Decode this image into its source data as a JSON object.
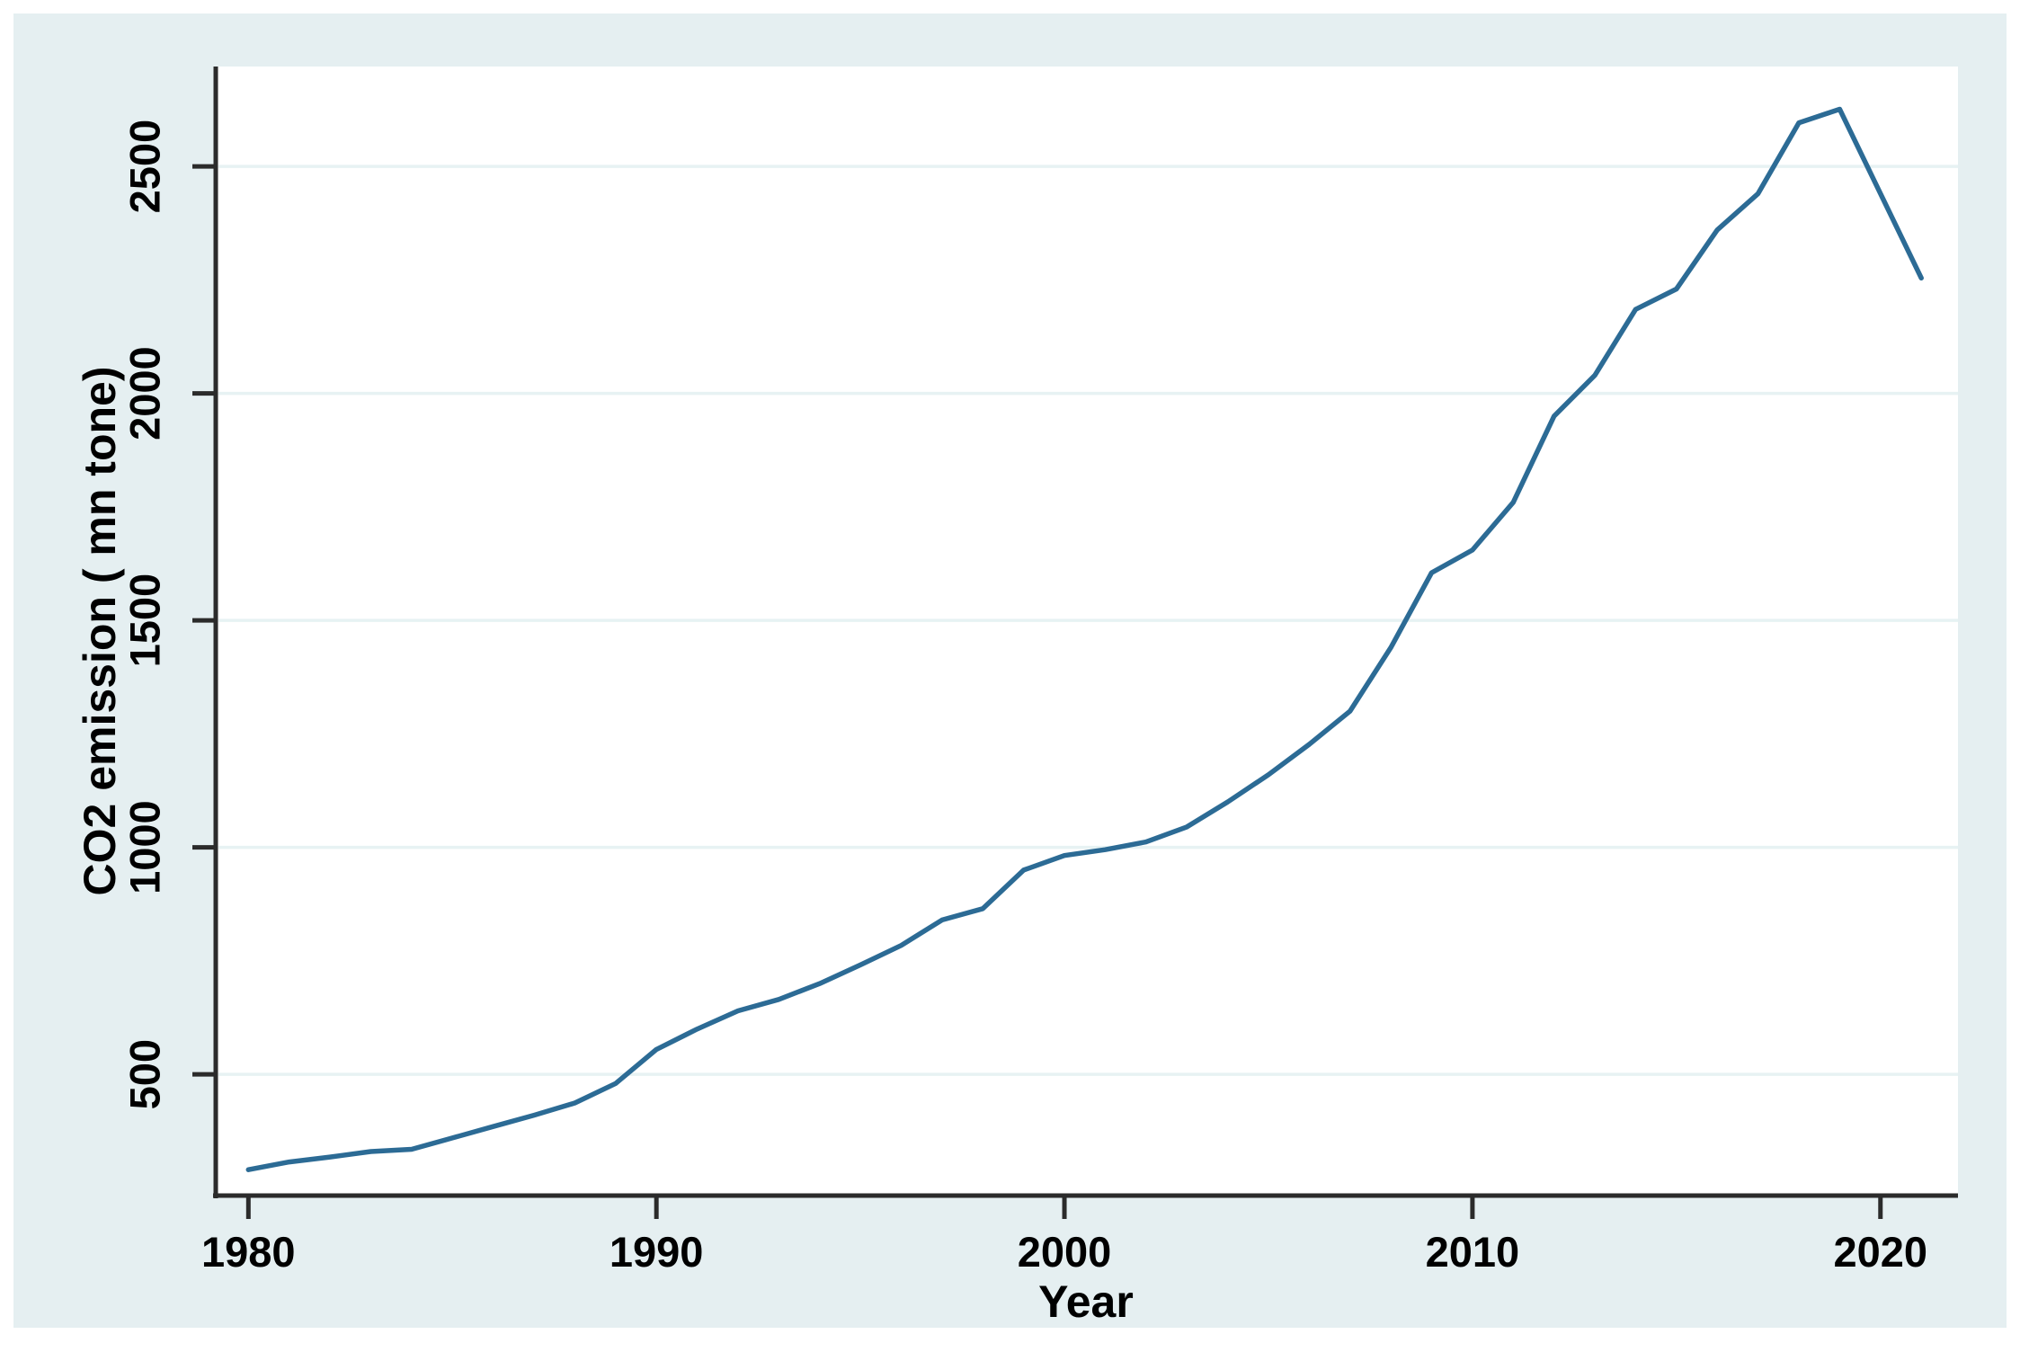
{
  "figure": {
    "outer_background": "#ffffff",
    "frame_background": "#e5eff1",
    "plot_background": "#ffffff",
    "grid_color": "#e7f2f3",
    "axis_color": "#2b2b2b",
    "text_color": "#000000"
  },
  "chart_data": {
    "type": "line",
    "title": "",
    "xlabel": "Year",
    "ylabel": "CO2 emission ( mn tone)",
    "legend": "none",
    "grid": "horizontal-only",
    "line_color": "#2c6b95",
    "x_ticks": [
      1980,
      1990,
      2000,
      2010,
      2020
    ],
    "y_ticks": [
      500,
      1000,
      1500,
      2000,
      2500
    ],
    "xlim": [
      1979.2,
      2021.9
    ],
    "ylim": [
      233,
      2720
    ],
    "x": [
      1980,
      1981,
      1982,
      1983,
      1984,
      1985,
      1986,
      1987,
      1988,
      1989,
      1990,
      1991,
      1992,
      1993,
      1994,
      1995,
      1996,
      1997,
      1998,
      1999,
      2000,
      2001,
      2002,
      2003,
      2004,
      2005,
      2006,
      2007,
      2008,
      2009,
      2010,
      2011,
      2012,
      2013,
      2014,
      2015,
      2016,
      2017,
      2018,
      2019,
      2020,
      2021
    ],
    "y": [
      290,
      307,
      318,
      330,
      335,
      360,
      385,
      410,
      437,
      480,
      555,
      600,
      640,
      665,
      700,
      741,
      784,
      840,
      865,
      950,
      982,
      995,
      1012,
      1045,
      1100,
      1160,
      1227,
      1300,
      1440,
      1605,
      1655,
      1760,
      1950,
      2040,
      2185,
      2230,
      2360,
      2440,
      2596,
      2626,
      2440,
      2254
    ],
    "series_name": "CO2 emission ( mn tone)"
  }
}
